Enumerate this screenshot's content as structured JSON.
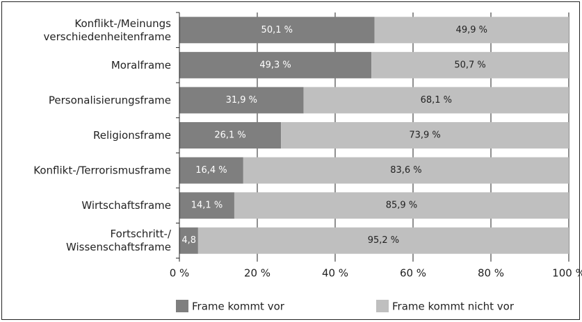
{
  "chart_data": {
    "type": "stacked-barh",
    "categories": [
      [
        "Konflikt-/Meinungs",
        "verschiedenheitenframe"
      ],
      [
        "Moralframe"
      ],
      [
        "Personalisierungsframe"
      ],
      [
        "Religionsframe"
      ],
      [
        "Konflikt-/Terrorismusframe"
      ],
      [
        "Wirtschaftsframe"
      ],
      [
        "Fortschritt-/",
        "Wissenschaftsframe"
      ]
    ],
    "series": [
      {
        "name": "Frame kommt vor",
        "color": "#7f7f7f",
        "label_color": "#ffffff",
        "values": [
          50.1,
          49.3,
          31.9,
          26.1,
          16.4,
          14.1,
          4.8
        ],
        "value_labels": [
          "50,1 %",
          "49,3 %",
          "31,9 %",
          "26,1 %",
          "16,4 %",
          "14,1 %",
          "4,8 %"
        ]
      },
      {
        "name": "Frame kommt nicht vor",
        "color": "#bfbfbf",
        "label_color": "#222222",
        "values": [
          49.9,
          50.7,
          68.1,
          73.9,
          83.6,
          85.9,
          95.2
        ],
        "value_labels": [
          "49,9 %",
          "50,7 %",
          "68,1 %",
          "73,9 %",
          "83,6 %",
          "85,9 %",
          "95,2 %"
        ]
      }
    ],
    "xlim": [
      0,
      100
    ],
    "xticks": [
      {
        "value": 0,
        "label": "0 %"
      },
      {
        "value": 20,
        "label": "20 %"
      },
      {
        "value": 40,
        "label": "40 %"
      },
      {
        "value": 60,
        "label": "60 %"
      },
      {
        "value": 80,
        "label": "80 %"
      },
      {
        "value": 100,
        "label": "100 %"
      }
    ],
    "grid": true,
    "legend": "bottom"
  }
}
